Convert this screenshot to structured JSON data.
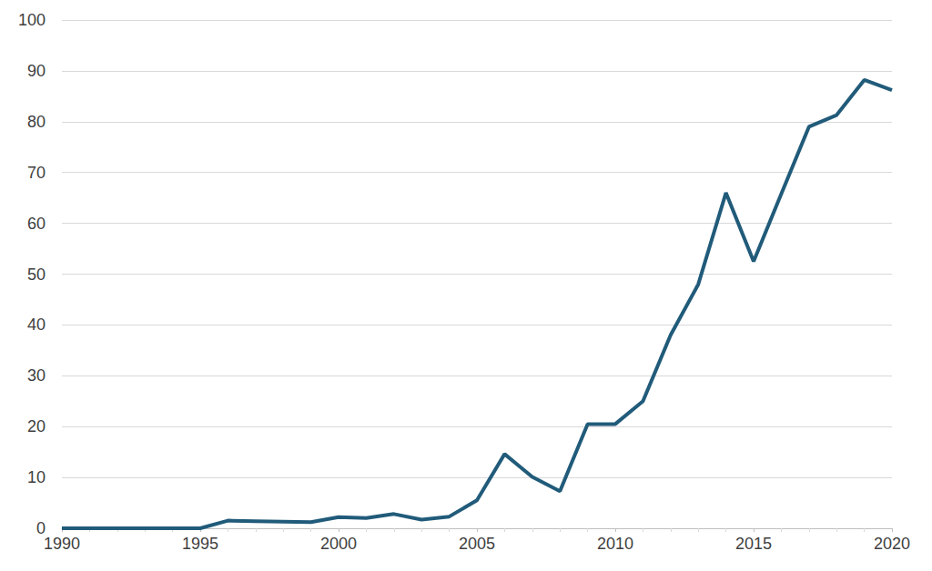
{
  "chart_data": {
    "type": "line",
    "x": [
      1990,
      1991,
      1992,
      1993,
      1994,
      1995,
      1996,
      1997,
      1998,
      1999,
      2000,
      2001,
      2002,
      2003,
      2004,
      2005,
      2006,
      2007,
      2008,
      2009,
      2010,
      2011,
      2012,
      2013,
      2014,
      2015,
      2016,
      2017,
      2018,
      2019,
      2020
    ],
    "values": [
      0,
      0,
      0,
      0,
      0,
      0,
      1.5,
      1.4,
      1.3,
      1.2,
      2.2,
      2.0,
      2.8,
      1.7,
      2.3,
      5.5,
      14.6,
      10.1,
      7.3,
      20.5,
      20.5,
      25.0,
      38.0,
      48.0,
      66.0,
      52.5,
      65.8,
      79.0,
      81.3,
      88.2,
      86.2
    ],
    "color": "#215b7a",
    "xlim": [
      1990,
      2020
    ],
    "xticks": [
      1990,
      1995,
      2000,
      2005,
      2010,
      2015,
      2020
    ],
    "ylim": [
      0,
      100
    ],
    "yticks": [
      0,
      10,
      20,
      30,
      40,
      50,
      60,
      70,
      80,
      90,
      100
    ],
    "grid": true
  }
}
